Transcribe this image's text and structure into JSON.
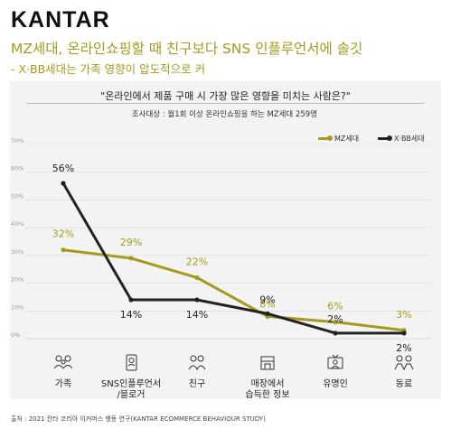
{
  "brand": "KANTAR",
  "headline": "MZ세대, 온라인쇼핑할 때 친구보다 SNS 인플루언서에 솔깃",
  "subheadline": "- X·BB세대는 가족 영향이 압도적으로 커",
  "question": "\"온라인에서 제품 구매 시 가장 많은 영향을 미치는 사람은?\"",
  "survey_note": "조사대상 : 월1회 이상 온라인쇼핑을 하는 MZ세대 259명",
  "source": "출처 : 2021 칸타 코리아 이커머스 행동 연구(KANTAR ECOMMERCE BEHAVIOUR STUDY)",
  "colors": {
    "mz": "#a49a1e",
    "xbb": "#222222",
    "grid": "#d9d9d9",
    "panel": "#f3f3f3"
  },
  "icons": [
    "family-icon",
    "influencer-phone-icon",
    "friends-icon",
    "store-staff-icon",
    "celebrity-tv-icon",
    "coworkers-icon"
  ],
  "chart_data": {
    "type": "line",
    "categories": [
      "가족",
      "SNS인플루언서\n/블로거",
      "친구",
      "매장에서\n습득한 정보",
      "유명인",
      "동료"
    ],
    "series": [
      {
        "name": "MZ세대",
        "values": [
          32,
          29,
          22,
          8,
          6,
          3
        ]
      },
      {
        "name": "X·BB세대",
        "values": [
          56,
          14,
          14,
          9,
          2,
          2
        ]
      }
    ],
    "data_labels": {
      "MZ세대": [
        "32%",
        "29%",
        "22%",
        "8%",
        "6%",
        "3%"
      ],
      "X·BB세대": [
        "56%",
        "14%",
        "14%",
        "9%",
        "2%",
        "2%"
      ]
    },
    "yticks": [
      "0%",
      "10%",
      "20%",
      "30%",
      "40%",
      "50%",
      "60%",
      "70%"
    ],
    "ylim": [
      0,
      70
    ],
    "grid": true,
    "legend_position": "top-right"
  }
}
